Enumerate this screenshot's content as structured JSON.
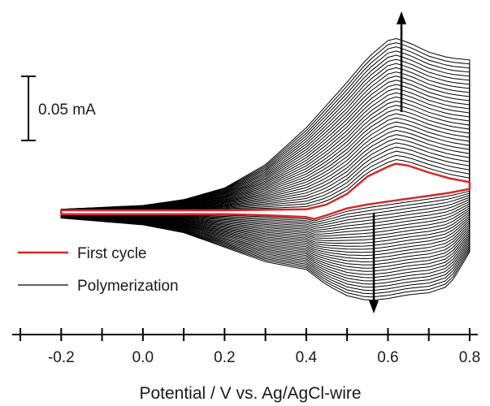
{
  "chart_data": {
    "type": "line",
    "title": "",
    "xlabel": "Potential / V vs. Ag/AgCl-wire",
    "ylabel": "",
    "xlim": [
      -0.32,
      0.82
    ],
    "ylim": [
      -0.115,
      0.208
    ],
    "x_ticks": [
      -0.2,
      0.0,
      0.2,
      0.4,
      0.6,
      0.8
    ],
    "x_tick_labels": [
      "-0.2",
      "0.0",
      "0.2",
      "0.4",
      "0.6",
      "0.8"
    ],
    "minor_tick_step": 0.1,
    "grid": false,
    "legend": {
      "placement": "bottom-left",
      "entries": [
        {
          "label": "First cycle",
          "color": "#d62728"
        },
        {
          "label": "Polymerization",
          "color": "#000000"
        }
      ]
    },
    "scale_bar": {
      "label": "0.05 mA",
      "value_mA": 0.05
    },
    "annotations": [
      {
        "type": "arrow",
        "direction": "up",
        "x_V": 0.62,
        "meaning": "anodic current increases with cycling"
      },
      {
        "type": "arrow",
        "direction": "down",
        "x_V": 0.56,
        "meaning": "cathodic current increases with cycling"
      }
    ],
    "polymerization_cycles": 30,
    "series": [
      {
        "name": "First cycle",
        "color": "#d62728",
        "units": "mA",
        "anodic_sweep": {
          "x": [
            -0.2,
            0.0,
            0.2,
            0.3,
            0.4,
            0.45,
            0.5,
            0.55,
            0.6,
            0.62,
            0.65,
            0.7,
            0.75,
            0.8
          ],
          "y": [
            0.003,
            0.003,
            0.003,
            0.0035,
            0.004,
            0.009,
            0.02,
            0.038,
            0.048,
            0.051,
            0.049,
            0.042,
            0.036,
            0.032
          ]
        },
        "cathodic_sweep": {
          "x": [
            0.8,
            0.75,
            0.7,
            0.65,
            0.6,
            0.55,
            0.5,
            0.45,
            0.42,
            0.4,
            0.3,
            0.2,
            0.0,
            -0.2
          ],
          "y": [
            0.025,
            0.021,
            0.018,
            0.015,
            0.012,
            0.009,
            0.005,
            -0.002,
            -0.006,
            -0.004,
            -0.002,
            -0.001,
            -0.001,
            -0.001
          ]
        }
      },
      {
        "name": "Polymerization",
        "color": "#000000",
        "units": "mA",
        "note": "final cycle of the polymerization series",
        "anodic_sweep": {
          "x": [
            -0.2,
            0.0,
            0.1,
            0.2,
            0.3,
            0.4,
            0.5,
            0.55,
            0.6,
            0.62,
            0.65,
            0.7,
            0.75,
            0.8
          ],
          "y": [
            0.004,
            0.008,
            0.014,
            0.026,
            0.05,
            0.088,
            0.135,
            0.16,
            0.178,
            0.18,
            0.176,
            0.166,
            0.16,
            0.158
          ]
        },
        "cathodic_sweep": {
          "x": [
            0.8,
            0.75,
            0.7,
            0.65,
            0.6,
            0.55,
            0.5,
            0.45,
            0.4,
            0.3,
            0.2,
            0.1,
            0.0,
            -0.2
          ],
          "y": [
            -0.04,
            -0.075,
            -0.082,
            -0.084,
            -0.088,
            -0.09,
            -0.085,
            -0.074,
            -0.058,
            -0.05,
            -0.035,
            -0.02,
            -0.012,
            -0.005
          ]
        }
      }
    ]
  }
}
